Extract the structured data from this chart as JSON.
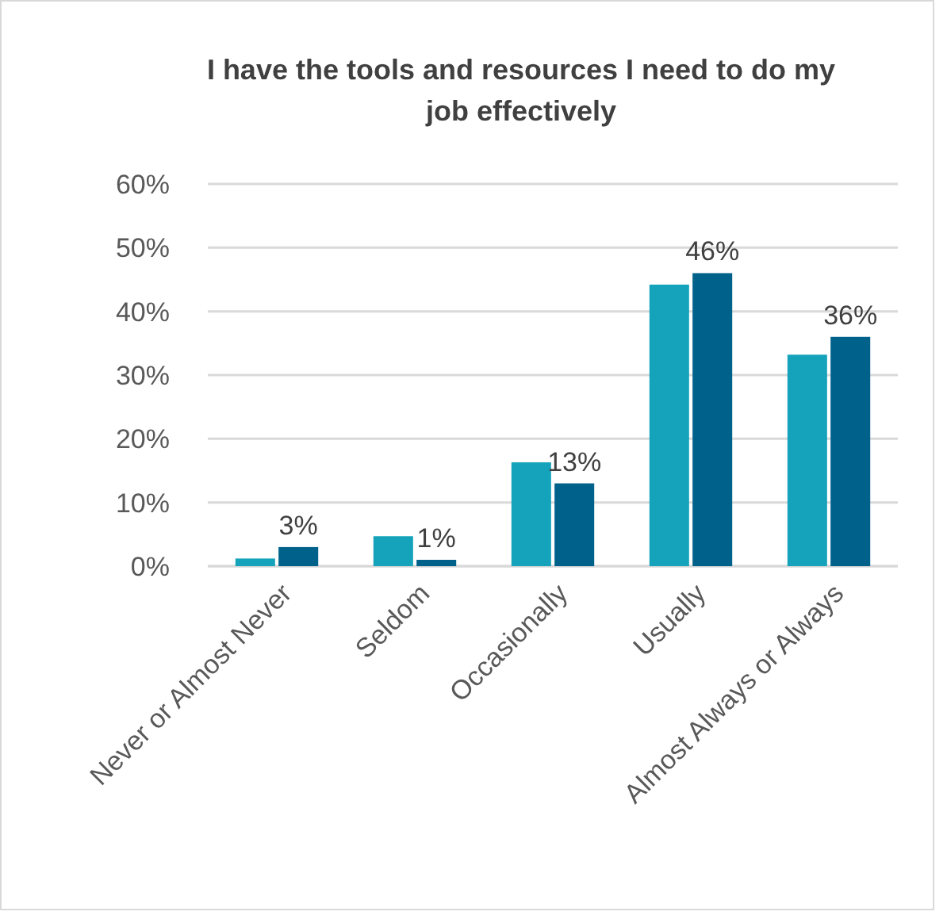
{
  "chart_data": {
    "type": "bar",
    "title": "I have the tools and resources I need to do my job effectively",
    "categories": [
      "Never or Almost Never",
      "Seldom",
      "Occasionally",
      "Usually",
      "Almost Always or Always"
    ],
    "series": [
      {
        "color": "#14a3bb",
        "values": [
          1.2,
          4.7,
          16.3,
          44.2,
          33.2
        ]
      },
      {
        "color": "#00628b",
        "values": [
          3,
          1,
          13,
          46,
          36
        ],
        "value_labels": [
          "3%",
          "1%",
          "13%",
          "46%",
          "36%"
        ]
      }
    ],
    "ylim": [
      0,
      60
    ],
    "yticks": [
      {
        "value": 0,
        "label": "0%"
      },
      {
        "value": 10,
        "label": "10%"
      },
      {
        "value": 20,
        "label": "20%"
      },
      {
        "value": 30,
        "label": "30%"
      },
      {
        "value": 40,
        "label": "40%"
      },
      {
        "value": 50,
        "label": "50%"
      },
      {
        "value": 60,
        "label": "60%"
      }
    ],
    "grid": "y"
  }
}
